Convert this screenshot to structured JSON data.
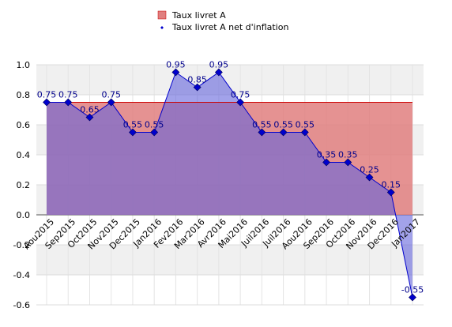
{
  "chart_data": {
    "type": "area",
    "categories": [
      "Aou2015",
      "Sep2015",
      "Oct2015",
      "Nov2015",
      "Dec2015",
      "Jan2016",
      "Fev2016",
      "Mar2016",
      "Avr2016",
      "Mai2016",
      "Juil2016",
      "Juil2016",
      "Aou2016",
      "Sep2016",
      "Oct2016",
      "Nov2016",
      "Dec2016",
      "Jan2017"
    ],
    "series": [
      {
        "name": "Taux livret A",
        "values": [
          0.75,
          0.75,
          0.75,
          0.75,
          0.75,
          0.75,
          0.75,
          0.75,
          0.75,
          0.75,
          0.75,
          0.75,
          0.75,
          0.75,
          0.75,
          0.75,
          0.75,
          0.75
        ],
        "fill": "#e07f7f",
        "line": "#cc0000",
        "labels": false
      },
      {
        "name": "Taux livret A net d'inflation",
        "values": [
          0.75,
          0.75,
          0.65,
          0.75,
          0.55,
          0.55,
          0.95,
          0.85,
          0.95,
          0.75,
          0.55,
          0.55,
          0.55,
          0.35,
          0.35,
          0.25,
          0.15,
          -0.55
        ],
        "fill": "#6464dc",
        "line": "#0000cc",
        "marker": "#0000cc",
        "labels": true
      }
    ],
    "y_ticks": [
      "1.0",
      "0.8",
      "0.6",
      "0.4",
      "0.2",
      "0.0",
      "-0.2",
      "-0.4",
      "-0.6"
    ],
    "y_tick_values": [
      1.0,
      0.8,
      0.6,
      0.4,
      0.2,
      0.0,
      -0.2,
      -0.4,
      -0.6
    ],
    "ylim": [
      -0.6,
      1.0
    ],
    "grid": true,
    "legend_position": "top-center",
    "title": "",
    "xlabel": "",
    "ylabel": ""
  }
}
